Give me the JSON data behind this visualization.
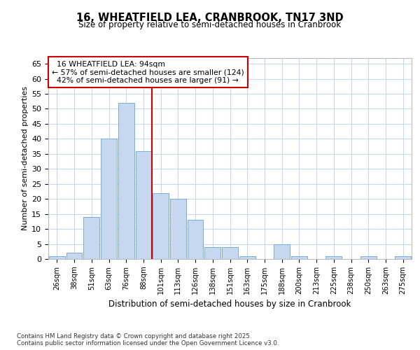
{
  "title_line1": "16, WHEATFIELD LEA, CRANBROOK, TN17 3ND",
  "title_line2": "Size of property relative to semi-detached houses in Cranbrook",
  "xlabel": "Distribution of semi-detached houses by size in Cranbrook",
  "ylabel": "Number of semi-detached properties",
  "categories": [
    "26sqm",
    "38sqm",
    "51sqm",
    "63sqm",
    "76sqm",
    "88sqm",
    "101sqm",
    "113sqm",
    "126sqm",
    "138sqm",
    "151sqm",
    "163sqm",
    "175sqm",
    "188sqm",
    "200sqm",
    "213sqm",
    "225sqm",
    "238sqm",
    "250sqm",
    "263sqm",
    "275sqm"
  ],
  "values": [
    1,
    2,
    14,
    40,
    52,
    36,
    22,
    20,
    13,
    4,
    4,
    1,
    0,
    5,
    1,
    0,
    1,
    0,
    1,
    0,
    1
  ],
  "bar_color": "#c5d8f0",
  "bar_edge_color": "#7aadd4",
  "marker_bin_index": 5,
  "marker_label": "16 WHEATFIELD LEA: 94sqm",
  "pct_smaller": 57,
  "count_smaller": 124,
  "pct_larger": 42,
  "count_larger": 91,
  "vline_color": "#cc0000",
  "annotation_box_edge": "#cc0000",
  "ylim": [
    0,
    67
  ],
  "yticks": [
    0,
    5,
    10,
    15,
    20,
    25,
    30,
    35,
    40,
    45,
    50,
    55,
    60,
    65
  ],
  "bg_color": "#ffffff",
  "grid_color": "#c8d8e8",
  "footer_line1": "Contains HM Land Registry data © Crown copyright and database right 2025.",
  "footer_line2": "Contains public sector information licensed under the Open Government Licence v3.0."
}
